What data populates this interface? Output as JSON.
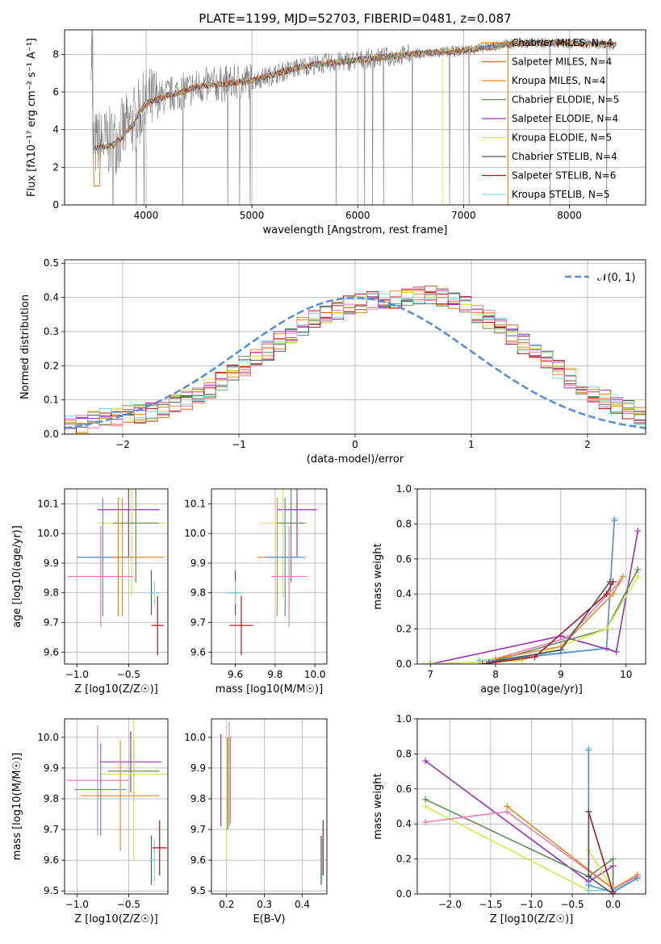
{
  "title": "PLATE=1199, MJD=52703, FIBERID=0481, z=0.087",
  "colors": {
    "Chabrier MILES": "#f07f17",
    "Salpeter MILES": "#e7612b",
    "Kroupa MILES": "#e68a2a",
    "Chabrier ELODIE": "#5d8e5d",
    "Salpeter ELODIE": "#9b30b8",
    "Kroupa ELODIE": "#d6e84a",
    "Chabrier STELIB": "#555555",
    "Salpeter STELIB": "#b01515",
    "Kroupa STELIB": "#7fd6d6",
    "pink": "#e77fb6",
    "blue": "#5a8fd8",
    "data": "#808080"
  },
  "chart_data": [
    {
      "type": "line",
      "panel": "spectrum",
      "xlabel": "wavelength [Angstrom, rest frame]",
      "ylabel": "Flux [f_λ 10^-17 erg cm^-2 s^-1 A^-1]",
      "xlim": [
        3230,
        8720
      ],
      "ylim": [
        0,
        9.3
      ],
      "xticks": [
        4000,
        5000,
        6000,
        7000,
        8000
      ],
      "yticks": [
        0,
        2,
        4,
        6,
        8
      ],
      "legend_position": "top-right",
      "legend": [
        {
          "name": "Chabrier MILES, N_SSP=4",
          "color": "#f07f17"
        },
        {
          "name": "Salpeter MILES, N_SSP=4",
          "color": "#e7612b"
        },
        {
          "name": "Kroupa MILES, N_SSP=4",
          "color": "#e68a2a"
        },
        {
          "name": "Chabrier ELODIE, N_SSP=5",
          "color": "#5d8e5d"
        },
        {
          "name": "Salpeter ELODIE, N_SSP=4",
          "color": "#9b30b8"
        },
        {
          "name": "Kroupa ELODIE, N_SSP=5",
          "color": "#d6e84a"
        },
        {
          "name": "Chabrier STELIB, N_SSP=4",
          "color": "#555555"
        },
        {
          "name": "Salpeter STELIB, N_SSP=6",
          "color": "#b01515"
        },
        {
          "name": "Kroupa STELIB, N_SSP=5",
          "color": "#7fd6d6"
        }
      ],
      "continuum": [
        [
          3500,
          3.2
        ],
        [
          3700,
          3.4
        ],
        [
          3900,
          4.6
        ],
        [
          4000,
          5.4
        ],
        [
          4200,
          5.8
        ],
        [
          4500,
          6.3
        ],
        [
          5000,
          6.6
        ],
        [
          5500,
          7.4
        ],
        [
          6000,
          7.7
        ],
        [
          6500,
          8.0
        ],
        [
          7000,
          8.2
        ],
        [
          7500,
          8.6
        ],
        [
          8000,
          8.6
        ],
        [
          8400,
          8.5
        ]
      ]
    },
    {
      "type": "bar",
      "panel": "residual histogram",
      "xlabel": "(data-model)/error",
      "ylabel": "Normed distribution",
      "xlim": [
        -2.5,
        2.5
      ],
      "ylim": [
        0,
        0.51
      ],
      "xticks": [
        -2,
        -1,
        0,
        1,
        2
      ],
      "yticks": [
        0.0,
        0.1,
        0.2,
        0.3,
        0.4,
        0.5
      ],
      "legend_position": "top-right",
      "legend": [
        {
          "name": "N(0, 1)",
          "color": "#5a8fd8",
          "style": "dashed"
        }
      ],
      "bin_edges_start": -2.5,
      "bin_width": 0.1,
      "base_values": [
        0.025,
        0.03,
        0.04,
        0.045,
        0.05,
        0.055,
        0.06,
        0.065,
        0.075,
        0.085,
        0.1,
        0.115,
        0.135,
        0.155,
        0.175,
        0.2,
        0.22,
        0.245,
        0.27,
        0.295,
        0.315,
        0.335,
        0.35,
        0.365,
        0.375,
        0.385,
        0.39,
        0.39,
        0.395,
        0.4,
        0.41,
        0.41,
        0.4,
        0.39,
        0.375,
        0.355,
        0.335,
        0.315,
        0.29,
        0.265,
        0.24,
        0.215,
        0.19,
        0.165,
        0.14,
        0.12,
        0.1,
        0.085,
        0.07,
        0.055
      ]
    },
    {
      "type": "scatter",
      "panel": "Z vs age",
      "xlabel": "Z [log10(Z/Z☉)]",
      "ylabel": "age [log10(age/yr)]",
      "xlim": [
        -1.12,
        -0.12
      ],
      "ylim": [
        9.56,
        10.15
      ],
      "xticks": [
        -1.0,
        -0.5
      ],
      "yticks": [
        9.6,
        9.7,
        9.8,
        9.9,
        10.0,
        10.1
      ],
      "points": [
        {
          "color": "#9b30b8",
          "x": -0.5,
          "xerr": 0.3,
          "y": 10.08,
          "yerr": 0.16
        },
        {
          "color": "#d6e84a",
          "x": -0.47,
          "xerr": 0.33,
          "y": 10.035,
          "yerr": 0.25
        },
        {
          "color": "#5d8e5d",
          "x": -0.43,
          "xerr": 0.22,
          "y": 10.035,
          "yerr": 0.2
        },
        {
          "color": "#e68a2a",
          "x": -0.56,
          "xerr": 0.4,
          "y": 9.92,
          "yerr": 0.2
        },
        {
          "color": "#5a8fd8",
          "x": -0.75,
          "xerr": 0.25,
          "y": 9.92,
          "yerr": 0.2
        },
        {
          "color": "#e77fb6",
          "x": -0.77,
          "xerr": 0.32,
          "y": 9.855,
          "yerr": 0.17
        },
        {
          "color": "#f07f17",
          "x": -0.6,
          "xerr": 0.05,
          "y": 9.92,
          "yerr": 0.2
        },
        {
          "color": "#555555",
          "x": -0.28,
          "xerr": 0.02,
          "y": 9.8,
          "yerr": 0.075
        },
        {
          "color": "#7fd6d6",
          "x": -0.25,
          "xerr": 0.05,
          "y": 9.8,
          "yerr": 0.04
        },
        {
          "color": "#b01515",
          "x": -0.22,
          "xerr": 0.06,
          "y": 9.69,
          "yerr": 0.1
        }
      ]
    },
    {
      "type": "scatter",
      "panel": "mass vs age",
      "xlabel": "mass [log10(M/M☉)]",
      "ylabel": "",
      "xlim": [
        9.48,
        10.06
      ],
      "ylim": [
        9.56,
        10.15
      ],
      "xticks": [
        9.6,
        9.8,
        10.0
      ],
      "yticks": [
        9.6,
        9.7,
        9.8,
        9.9,
        10.0,
        10.1
      ],
      "points": [
        {
          "color": "#9b30b8",
          "x": 9.91,
          "xerr": 0.1,
          "y": 10.08,
          "yerr": 0.16
        },
        {
          "color": "#d6e84a",
          "x": 9.84,
          "xerr": 0.12,
          "y": 10.035,
          "yerr": 0.25
        },
        {
          "color": "#5d8e5d",
          "x": 9.88,
          "xerr": 0.07,
          "y": 10.035,
          "yerr": 0.2
        },
        {
          "color": "#e68a2a",
          "x": 9.81,
          "xerr": 0.1,
          "y": 9.92,
          "yerr": 0.2
        },
        {
          "color": "#5a8fd8",
          "x": 9.85,
          "xerr": 0.1,
          "y": 9.92,
          "yerr": 0.2
        },
        {
          "color": "#e77fb6",
          "x": 9.87,
          "xerr": 0.09,
          "y": 9.855,
          "yerr": 0.17
        },
        {
          "color": "#555555",
          "x": 9.6,
          "xerr": 0.03,
          "y": 9.8,
          "yerr": 0.075
        },
        {
          "color": "#7fd6d6",
          "x": 9.6,
          "xerr": 0.05,
          "y": 9.8,
          "yerr": 0.04
        },
        {
          "color": "#b01515",
          "x": 9.63,
          "xerr": 0.06,
          "y": 9.69,
          "yerr": 0.1
        }
      ]
    },
    {
      "type": "line",
      "panel": "age vs mass weight",
      "xlabel": "age [log10(age/yr)]",
      "ylabel": "mass weight",
      "xlim": [
        6.8,
        10.3
      ],
      "ylim": [
        0,
        1.0
      ],
      "xticks": [
        7,
        8,
        9,
        10
      ],
      "yticks": [
        0.0,
        0.2,
        0.4,
        0.6,
        0.8,
        1.0
      ],
      "series": [
        {
          "color": "#7fd6d6",
          "points": [
            [
              7.75,
              0.02
            ],
            [
              9.7,
              0.09
            ],
            [
              9.82,
              0.83
            ]
          ]
        },
        {
          "color": "#5a8fd8",
          "points": [
            [
              7.75,
              0.01
            ],
            [
              9.7,
              0.09
            ],
            [
              9.82,
              0.82
            ]
          ]
        },
        {
          "color": "#9b30b8",
          "points": [
            [
              7.0,
              0.0
            ],
            [
              9.0,
              0.16
            ],
            [
              9.85,
              0.07
            ],
            [
              10.18,
              0.76
            ]
          ]
        },
        {
          "color": "#5d8e5d",
          "points": [
            [
              8.0,
              0.02
            ],
            [
              9.7,
              0.2
            ],
            [
              10.18,
              0.54
            ]
          ]
        },
        {
          "color": "#d6e84a",
          "points": [
            [
              6.9,
              0.0
            ],
            [
              8.4,
              0.02
            ],
            [
              9.7,
              0.2
            ],
            [
              10.18,
              0.5
            ]
          ]
        },
        {
          "color": "#e77fb6",
          "points": [
            [
              8.0,
              0.03
            ],
            [
              9.1,
              0.15
            ],
            [
              9.9,
              0.47
            ]
          ]
        },
        {
          "color": "#e68a2a",
          "points": [
            [
              8.0,
              0.03
            ],
            [
              9.0,
              0.1
            ],
            [
              9.8,
              0.4
            ],
            [
              9.95,
              0.5
            ]
          ]
        },
        {
          "color": "#b01515",
          "points": [
            [
              7.8,
              0.0
            ],
            [
              8.6,
              0.04
            ],
            [
              9.7,
              0.4
            ],
            [
              9.8,
              0.47
            ]
          ]
        },
        {
          "color": "#555555",
          "points": [
            [
              7.9,
              0.01
            ],
            [
              9.0,
              0.08
            ],
            [
              9.75,
              0.47
            ]
          ]
        }
      ]
    },
    {
      "type": "scatter",
      "panel": "Z vs mass",
      "xlabel": "Z [log10(Z/Z☉)]",
      "ylabel": "mass [log10(M/M☉)]",
      "xlim": [
        -1.12,
        -0.12
      ],
      "ylim": [
        9.49,
        10.06
      ],
      "xticks": [
        -1.0,
        -0.5
      ],
      "yticks": [
        9.5,
        9.6,
        9.7,
        9.8,
        9.9,
        10.0
      ],
      "points": [
        {
          "color": "#9b30b8",
          "x": -0.48,
          "xerr": 0.3,
          "y": 9.92,
          "yerr": 0.1
        },
        {
          "color": "#5d8e5d",
          "x": -0.45,
          "xerr": 0.25,
          "y": 9.89,
          "yerr": 0.1
        },
        {
          "color": "#d6e84a",
          "x": -0.45,
          "xerr": 0.33,
          "y": 9.88,
          "yerr": 0.28
        },
        {
          "color": "#e77fb6",
          "x": -0.8,
          "xerr": 0.3,
          "y": 9.86,
          "yerr": 0.18
        },
        {
          "color": "#5a8fd8",
          "x": -0.77,
          "xerr": 0.25,
          "y": 9.83,
          "yerr": 0.15
        },
        {
          "color": "#e68a2a",
          "x": -0.58,
          "xerr": 0.38,
          "y": 9.81,
          "yerr": 0.18
        },
        {
          "color": "#555555",
          "x": -0.28,
          "xerr": 0.02,
          "y": 9.6,
          "yerr": 0.08
        },
        {
          "color": "#7fd6d6",
          "x": -0.25,
          "xerr": 0.05,
          "y": 9.6,
          "yerr": 0.07
        },
        {
          "color": "#b01515",
          "x": -0.2,
          "xerr": 0.07,
          "y": 9.64,
          "yerr": 0.09
        }
      ]
    },
    {
      "type": "scatter",
      "panel": "E(B-V) vs mass",
      "xlabel": "E(B-V)",
      "ylabel": "",
      "xlim": [
        0.16,
        0.465
      ],
      "ylim": [
        9.49,
        10.06
      ],
      "xticks": [
        0.2,
        0.3,
        0.4
      ],
      "yticks": [
        9.5,
        9.6,
        9.7,
        9.8,
        9.9,
        10.0
      ],
      "points": [
        {
          "color": "#9b30b8",
          "x": 0.185,
          "xerr": 0.0,
          "y": 9.86,
          "yerr": 0.15
        },
        {
          "color": "#d6e84a",
          "x": 0.2,
          "xerr": 0.0,
          "y": 9.8,
          "yerr": 0.2
        },
        {
          "color": "#5d8e5d",
          "x": 0.203,
          "xerr": 0.0,
          "y": 9.85,
          "yerr": 0.15
        },
        {
          "color": "#e77fb6",
          "x": 0.207,
          "xerr": 0.0,
          "y": 9.88,
          "yerr": 0.17
        },
        {
          "color": "#e68a2a",
          "x": 0.21,
          "xerr": 0.0,
          "y": 9.86,
          "yerr": 0.14
        },
        {
          "color": "#555555",
          "x": 0.45,
          "xerr": 0.0,
          "y": 9.6,
          "yerr": 0.08
        },
        {
          "color": "#7fd6d6",
          "x": 0.452,
          "xerr": 0.0,
          "y": 9.6,
          "yerr": 0.07
        },
        {
          "color": "#b01515",
          "x": 0.455,
          "xerr": 0.0,
          "y": 9.64,
          "yerr": 0.09
        }
      ]
    },
    {
      "type": "line",
      "panel": "Z vs mass weight",
      "xlabel": "Z [log10(Z/Z☉)]",
      "ylabel": "mass weight",
      "xlim": [
        -2.4,
        0.4
      ],
      "ylim": [
        0,
        1.0
      ],
      "xticks": [
        -2.0,
        -1.5,
        -1.0,
        -0.5,
        0.0
      ],
      "yticks": [
        0.0,
        0.2,
        0.4,
        0.6,
        0.8,
        1.0
      ],
      "series": [
        {
          "color": "#9b30b8",
          "points": [
            [
              -2.3,
              0.76
            ],
            [
              -0.3,
              0.07
            ],
            [
              0.0,
              0.16
            ],
            [
              0.0,
              0.0
            ]
          ]
        },
        {
          "color": "#5d8e5d",
          "points": [
            [
              -2.3,
              0.54
            ],
            [
              -0.3,
              0.1
            ],
            [
              0.0,
              0.2
            ],
            [
              0.0,
              0.0
            ]
          ]
        },
        {
          "color": "#d6e84a",
          "points": [
            [
              -2.3,
              0.5
            ],
            [
              -0.3,
              0.02
            ],
            [
              -0.3,
              0.25
            ],
            [
              0.0,
              0.02
            ]
          ]
        },
        {
          "color": "#e77fb6",
          "points": [
            [
              -2.3,
              0.41
            ],
            [
              -1.3,
              0.47
            ],
            [
              0.0,
              0.03
            ],
            [
              0.3,
              0.1
            ]
          ]
        },
        {
          "color": "#e68a2a",
          "points": [
            [
              -1.3,
              0.5
            ],
            [
              0.0,
              0.03
            ],
            [
              0.3,
              0.11
            ]
          ]
        },
        {
          "color": "#7fd6d6",
          "points": [
            [
              -0.3,
              0.83
            ],
            [
              -0.3,
              0.02
            ],
            [
              0.0,
              0.02
            ],
            [
              0.3,
              0.09
            ]
          ]
        },
        {
          "color": "#5a8fd8",
          "points": [
            [
              -0.3,
              0.82
            ],
            [
              -0.3,
              0.05
            ],
            [
              0.0,
              0.01
            ],
            [
              0.3,
              0.09
            ]
          ]
        },
        {
          "color": "#b01515",
          "points": [
            [
              -0.3,
              0.47
            ],
            [
              0.0,
              0.01
            ]
          ]
        },
        {
          "color": "#555555",
          "points": [
            [
              -0.3,
              0.47
            ],
            [
              -0.3,
              0.1
            ],
            [
              0.0,
              0.0
            ]
          ]
        }
      ]
    }
  ]
}
